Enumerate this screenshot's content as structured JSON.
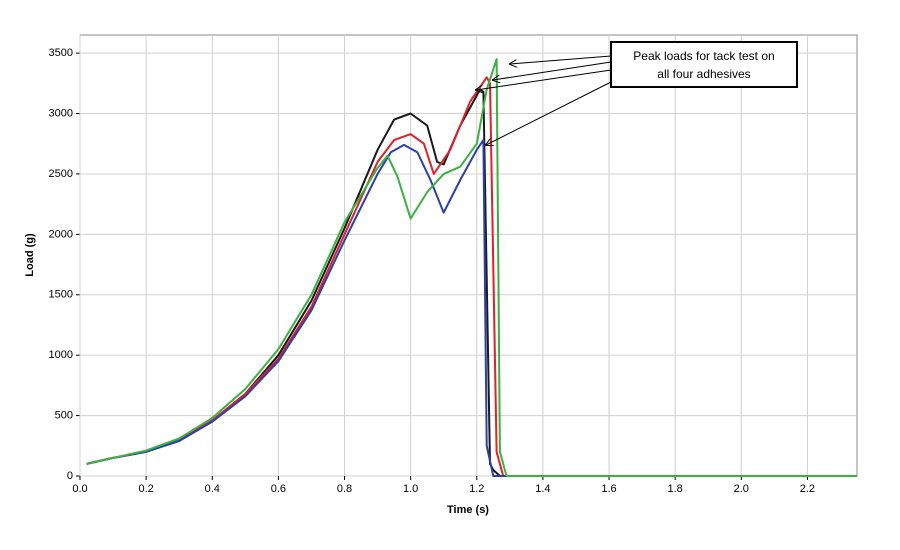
{
  "chart_data": {
    "type": "line",
    "x_label": "Time (s)",
    "y_label": "Load (g)",
    "annotation": [
      "Peak loads for tack test on",
      "all four adhesives"
    ],
    "grid": true,
    "xlim": [
      0,
      2.35
    ],
    "xticks": [
      {
        "value": 0,
        "label": "0.0"
      },
      0.2,
      0.4,
      0.6,
      0.8,
      {
        "value": 1,
        "label": "1.0"
      },
      1.2,
      1.4,
      1.6,
      1.8,
      {
        "value": 2,
        "label": "2.0"
      },
      2.2
    ],
    "ylim": [
      0,
      3650
    ],
    "yticks": [
      0,
      500,
      1000,
      1500,
      2000,
      2500,
      3000,
      3500
    ],
    "series": [
      {
        "color": "#1a1a1a",
        "x": [
          0.02,
          0.1,
          0.2,
          0.3,
          0.4,
          0.5,
          0.6,
          0.7,
          0.8,
          0.9,
          0.95,
          1.0,
          1.05,
          1.08,
          1.1,
          1.15,
          1.21,
          1.22,
          1.24,
          1.25,
          1.27,
          1.4,
          1.6,
          1.8,
          2.0,
          2.2,
          2.35
        ],
        "values": [
          100,
          150,
          200,
          300,
          450,
          680,
          1000,
          1450,
          2050,
          2700,
          2950,
          3000,
          2900,
          2600,
          2580,
          2900,
          3200,
          3180,
          100,
          50,
          0,
          0,
          0,
          0,
          0,
          0,
          0
        ]
      },
      {
        "color": "#e0202a",
        "x": [
          0.02,
          0.1,
          0.2,
          0.3,
          0.4,
          0.5,
          0.6,
          0.7,
          0.8,
          0.9,
          0.95,
          1.0,
          1.04,
          1.07,
          1.12,
          1.18,
          1.23,
          1.24,
          1.26,
          1.28,
          1.4,
          1.6,
          1.8,
          2.0,
          2.2,
          2.35
        ],
        "values": [
          100,
          150,
          200,
          300,
          460,
          680,
          970,
          1400,
          2000,
          2600,
          2780,
          2830,
          2750,
          2500,
          2700,
          3100,
          3300,
          3250,
          200,
          0,
          0,
          0,
          0,
          0,
          0,
          0
        ]
      },
      {
        "color": "#2b3fa8",
        "x": [
          0.02,
          0.1,
          0.2,
          0.3,
          0.4,
          0.5,
          0.6,
          0.7,
          0.8,
          0.9,
          0.94,
          0.98,
          1.02,
          1.06,
          1.1,
          1.15,
          1.2,
          1.22,
          1.23,
          1.25,
          1.4,
          1.6,
          1.8,
          2.0,
          2.2,
          2.35
        ],
        "values": [
          100,
          150,
          200,
          290,
          450,
          660,
          950,
          1370,
          1950,
          2500,
          2680,
          2740,
          2680,
          2450,
          2180,
          2450,
          2700,
          2780,
          250,
          0,
          0,
          0,
          0,
          0,
          0,
          0
        ]
      },
      {
        "color": "#3cb043",
        "x": [
          0.02,
          0.1,
          0.2,
          0.3,
          0.4,
          0.5,
          0.6,
          0.7,
          0.8,
          0.9,
          0.93,
          0.96,
          1.0,
          1.05,
          1.1,
          1.15,
          1.2,
          1.23,
          1.26,
          1.27,
          1.29,
          1.4,
          1.6,
          1.8,
          2.0,
          2.2,
          2.35
        ],
        "values": [
          100,
          150,
          210,
          310,
          480,
          720,
          1050,
          1500,
          2100,
          2550,
          2650,
          2480,
          2130,
          2350,
          2500,
          2560,
          2750,
          3200,
          3450,
          200,
          0,
          0,
          0,
          0,
          0,
          0,
          0
        ]
      }
    ]
  }
}
